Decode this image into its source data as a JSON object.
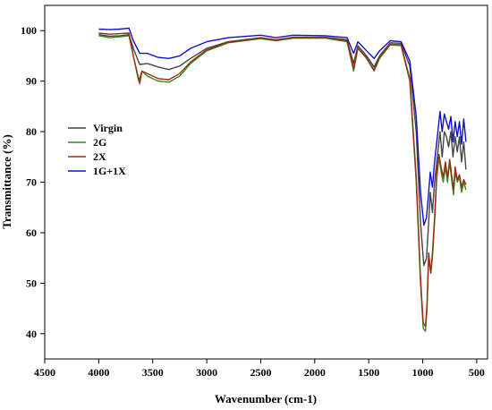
{
  "chart_data": {
    "type": "line",
    "title": "",
    "xlabel": "Wavenumber (cm-1)",
    "ylabel": "Transmittance (%)",
    "xlim": [
      4500,
      400
    ],
    "ylim": [
      35,
      105
    ],
    "x_reversed": true,
    "grid": false,
    "legend_position": "left",
    "x_ticks": [
      4500,
      4000,
      3500,
      3000,
      2500,
      2000,
      1500,
      1000,
      500
    ],
    "y_ticks": [
      40,
      50,
      60,
      70,
      80,
      90,
      100
    ],
    "series": [
      {
        "name": "Virgin",
        "color": "#444444",
        "points": [
          [
            4000,
            99.2
          ],
          [
            3900,
            98.9
          ],
          [
            3800,
            99.0
          ],
          [
            3720,
            99.2
          ],
          [
            3680,
            96.5
          ],
          [
            3620,
            93.3
          ],
          [
            3550,
            93.5
          ],
          [
            3450,
            92.8
          ],
          [
            3350,
            92.3
          ],
          [
            3250,
            93.0
          ],
          [
            3150,
            94.5
          ],
          [
            3000,
            96.5
          ],
          [
            2800,
            97.8
          ],
          [
            2500,
            98.6
          ],
          [
            2360,
            98.2
          ],
          [
            2200,
            98.7
          ],
          [
            1900,
            98.7
          ],
          [
            1700,
            98.2
          ],
          [
            1640,
            93.5
          ],
          [
            1600,
            97.0
          ],
          [
            1520,
            95.0
          ],
          [
            1450,
            92.8
          ],
          [
            1400,
            95.0
          ],
          [
            1300,
            97.6
          ],
          [
            1200,
            97.5
          ],
          [
            1120,
            93.0
          ],
          [
            1060,
            80.0
          ],
          [
            1020,
            62.0
          ],
          [
            990,
            53.5
          ],
          [
            965,
            55.0
          ],
          [
            945,
            62.0
          ],
          [
            930,
            68.0
          ],
          [
            910,
            64.0
          ],
          [
            890,
            70.0
          ],
          [
            860,
            76.0
          ],
          [
            840,
            80.0
          ],
          [
            820,
            75.0
          ],
          [
            800,
            80.0
          ],
          [
            780,
            79.0
          ],
          [
            760,
            77.0
          ],
          [
            740,
            80.0
          ],
          [
            720,
            75.0
          ],
          [
            700,
            79.0
          ],
          [
            680,
            76.0
          ],
          [
            660,
            79.0
          ],
          [
            640,
            74.0
          ],
          [
            620,
            78.0
          ],
          [
            600,
            72.5
          ]
        ]
      },
      {
        "name": "2G",
        "color": "#2e8b22",
        "points": [
          [
            4000,
            99.0
          ],
          [
            3900,
            98.6
          ],
          [
            3800,
            98.8
          ],
          [
            3720,
            99.0
          ],
          [
            3680,
            95.0
          ],
          [
            3630,
            90.0
          ],
          [
            3600,
            92.0
          ],
          [
            3550,
            91.0
          ],
          [
            3450,
            90.0
          ],
          [
            3350,
            89.8
          ],
          [
            3250,
            91.0
          ],
          [
            3150,
            93.5
          ],
          [
            3000,
            96.0
          ],
          [
            2800,
            97.6
          ],
          [
            2500,
            98.4
          ],
          [
            2360,
            98.0
          ],
          [
            2200,
            98.5
          ],
          [
            1900,
            98.5
          ],
          [
            1700,
            97.8
          ],
          [
            1640,
            92.0
          ],
          [
            1600,
            96.5
          ],
          [
            1520,
            94.5
          ],
          [
            1450,
            92.0
          ],
          [
            1400,
            94.5
          ],
          [
            1300,
            97.2
          ],
          [
            1200,
            97.0
          ],
          [
            1120,
            90.0
          ],
          [
            1060,
            70.0
          ],
          [
            1020,
            50.0
          ],
          [
            995,
            41.0
          ],
          [
            975,
            40.5
          ],
          [
            960,
            45.0
          ],
          [
            945,
            55.0
          ],
          [
            925,
            52.0
          ],
          [
            910,
            55.0
          ],
          [
            890,
            62.0
          ],
          [
            870,
            71.0
          ],
          [
            850,
            75.0
          ],
          [
            830,
            72.0
          ],
          [
            810,
            70.0
          ],
          [
            790,
            73.0
          ],
          [
            770,
            70.0
          ],
          [
            750,
            74.0
          ],
          [
            730,
            70.0
          ],
          [
            715,
            67.5
          ],
          [
            700,
            72.0
          ],
          [
            680,
            70.0
          ],
          [
            660,
            71.0
          ],
          [
            640,
            68.0
          ],
          [
            620,
            70.0
          ],
          [
            600,
            68.5
          ]
        ]
      },
      {
        "name": "2X",
        "color": "#9b2d12",
        "points": [
          [
            4000,
            99.5
          ],
          [
            3900,
            99.3
          ],
          [
            3800,
            99.4
          ],
          [
            3720,
            99.5
          ],
          [
            3680,
            95.0
          ],
          [
            3620,
            89.5
          ],
          [
            3600,
            92.0
          ],
          [
            3550,
            91.5
          ],
          [
            3450,
            90.5
          ],
          [
            3350,
            90.3
          ],
          [
            3250,
            91.5
          ],
          [
            3150,
            93.8
          ],
          [
            3000,
            96.2
          ],
          [
            2800,
            97.7
          ],
          [
            2500,
            98.5
          ],
          [
            2360,
            98.1
          ],
          [
            2200,
            98.6
          ],
          [
            1900,
            98.6
          ],
          [
            1700,
            98.0
          ],
          [
            1640,
            92.5
          ],
          [
            1600,
            96.6
          ],
          [
            1520,
            94.6
          ],
          [
            1450,
            92.2
          ],
          [
            1400,
            94.8
          ],
          [
            1300,
            97.3
          ],
          [
            1200,
            97.2
          ],
          [
            1120,
            90.5
          ],
          [
            1060,
            71.0
          ],
          [
            1020,
            51.0
          ],
          [
            995,
            42.0
          ],
          [
            975,
            41.5
          ],
          [
            960,
            46.0
          ],
          [
            945,
            56.0
          ],
          [
            925,
            52.0
          ],
          [
            910,
            56.0
          ],
          [
            890,
            63.0
          ],
          [
            870,
            72.0
          ],
          [
            850,
            75.5
          ],
          [
            830,
            73.0
          ],
          [
            810,
            71.0
          ],
          [
            790,
            74.0
          ],
          [
            770,
            71.0
          ],
          [
            750,
            74.5
          ],
          [
            730,
            71.0
          ],
          [
            715,
            68.5
          ],
          [
            700,
            73.0
          ],
          [
            680,
            70.5
          ],
          [
            660,
            71.5
          ],
          [
            640,
            69.0
          ],
          [
            620,
            70.5
          ],
          [
            600,
            69.5
          ]
        ]
      },
      {
        "name": "1G+1X",
        "color": "#1010c8",
        "points": [
          [
            4000,
            100.3
          ],
          [
            3900,
            100.2
          ],
          [
            3800,
            100.3
          ],
          [
            3720,
            100.5
          ],
          [
            3680,
            98.0
          ],
          [
            3620,
            95.5
          ],
          [
            3550,
            95.5
          ],
          [
            3450,
            94.7
          ],
          [
            3350,
            94.5
          ],
          [
            3250,
            95.0
          ],
          [
            3150,
            96.5
          ],
          [
            3000,
            97.8
          ],
          [
            2800,
            98.6
          ],
          [
            2500,
            99.1
          ],
          [
            2360,
            98.6
          ],
          [
            2200,
            99.1
          ],
          [
            1900,
            99.0
          ],
          [
            1700,
            98.6
          ],
          [
            1640,
            95.5
          ],
          [
            1600,
            97.8
          ],
          [
            1520,
            96.0
          ],
          [
            1450,
            94.5
          ],
          [
            1400,
            96.0
          ],
          [
            1300,
            98.0
          ],
          [
            1200,
            97.8
          ],
          [
            1120,
            94.0
          ],
          [
            1060,
            83.0
          ],
          [
            1020,
            68.0
          ],
          [
            990,
            61.5
          ],
          [
            965,
            63.0
          ],
          [
            945,
            68.0
          ],
          [
            930,
            72.0
          ],
          [
            910,
            69.0
          ],
          [
            890,
            74.0
          ],
          [
            860,
            80.0
          ],
          [
            840,
            84.0
          ],
          [
            820,
            80.0
          ],
          [
            800,
            83.5
          ],
          [
            780,
            82.0
          ],
          [
            760,
            80.5
          ],
          [
            740,
            83.0
          ],
          [
            720,
            78.0
          ],
          [
            700,
            82.0
          ],
          [
            680,
            79.0
          ],
          [
            660,
            82.0
          ],
          [
            640,
            77.5
          ],
          [
            620,
            82.5
          ],
          [
            600,
            78.0
          ]
        ]
      }
    ]
  }
}
